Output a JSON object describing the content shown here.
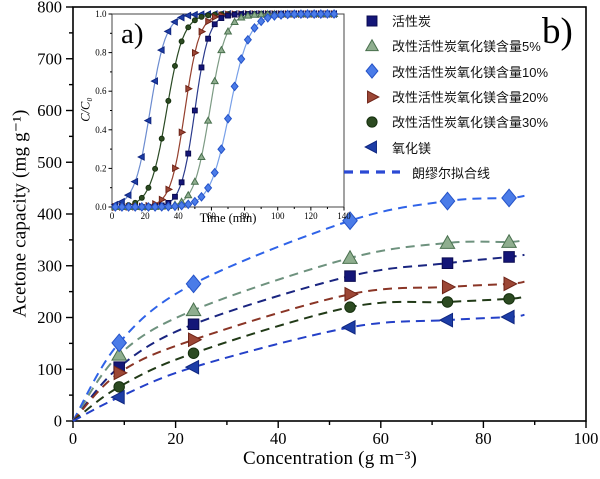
{
  "figure": {
    "panel_a": "a)",
    "panel_b": "b)"
  },
  "palette": {
    "square": {
      "fill": "#141678",
      "edge": "#0a0a50",
      "line": "#1a2580",
      "inset_line": "#2a3a8c"
    },
    "triangle-up": {
      "fill": "#8fae8f",
      "edge": "#49704e",
      "line": "#6e927e",
      "inset_line": "#7d9b84"
    },
    "diamond": {
      "fill": "#4b7ce8",
      "edge": "#2553c8",
      "line": "#2f63e8",
      "inset_line": "#78a0e8"
    },
    "triangle-right": {
      "fill": "#9c4736",
      "edge": "#6f2418",
      "line": "#8a3526",
      "inset_line": "#95402e"
    },
    "circle": {
      "fill": "#2c4a21",
      "edge": "#15300e",
      "line": "#213a17",
      "inset_line": "#2a4a24"
    },
    "triangle-left": {
      "fill": "#1d3da6",
      "edge": "#0f2680",
      "line": "#2440c8",
      "inset_line": "#6c8cd0"
    }
  },
  "fit_line_color": "#2b49d4",
  "legend": {
    "items": [
      {
        "label": "活性炭",
        "marker": "square"
      },
      {
        "label": "改性活性炭氧化镁含量5%",
        "marker": "triangle-up"
      },
      {
        "label": "改性活性炭氧化镁含量10%",
        "marker": "diamond"
      },
      {
        "label": "改性活性炭氧化镁含量20%",
        "marker": "triangle-right"
      },
      {
        "label": "改性活性炭氧化镁含量30%",
        "marker": "circle"
      },
      {
        "label": "氧化镁",
        "marker": "triangle-left"
      }
    ],
    "fit_label": "朗缪尔拟合线"
  },
  "chart_data": [
    {
      "id": "main",
      "type": "scatter",
      "xlabel": "Concentration (g m⁻³)",
      "ylabel": "Acetone capacity (mg g⁻¹)",
      "xlim": [
        0,
        100
      ],
      "ylim": [
        0,
        800
      ],
      "x_ticks": [
        "0",
        "20",
        "40",
        "60",
        "80",
        "100"
      ],
      "y_ticks": [
        "0",
        "100",
        "200",
        "300",
        "400",
        "500",
        "600",
        "700",
        "800"
      ],
      "x_minor_step": 10,
      "y_minor_step": 50,
      "fit": "Langmuir, dashed lines through origin",
      "x": [
        9,
        23.5,
        54,
        73,
        85
      ],
      "series": [
        {
          "name": "活性炭",
          "marker": "square",
          "y": [
            104,
            187,
            280,
            305,
            317
          ]
        },
        {
          "name": "改性活性炭氧化镁含量5%",
          "marker": "triangle-up",
          "y": [
            128,
            214,
            315,
            344,
            346
          ]
        },
        {
          "name": "改性活性炭氧化镁含量10%",
          "marker": "diamond",
          "y": [
            151,
            265,
            387,
            425,
            431
          ]
        },
        {
          "name": "改性活性炭氧化镁含量20%",
          "marker": "triangle-right",
          "y": [
            93,
            157,
            245,
            259,
            265
          ]
        },
        {
          "name": "改性活性炭氧化镁含量30%",
          "marker": "circle",
          "y": [
            66,
            131,
            220,
            230,
            236
          ]
        },
        {
          "name": "氧化镁",
          "marker": "triangle-left",
          "y": [
            46,
            104,
            181,
            195,
            201
          ]
        }
      ]
    },
    {
      "id": "inset",
      "type": "line",
      "panel_label": "a)",
      "xlabel": "Time (min)",
      "ylabel": "C/C₀",
      "xlim": [
        0,
        140
      ],
      "ylim": [
        0.0,
        1.0
      ],
      "x_ticks": [
        "0",
        "20",
        "40",
        "60",
        "80",
        "100",
        "120",
        "140"
      ],
      "y_ticks": [
        "0.0",
        "0.2",
        "0.4",
        "0.6",
        "0.8",
        "1.0"
      ],
      "x_minor_step": 10,
      "y_minor_step": 0.1,
      "model": "C/C0 = 1/(1+exp(-k*(t-t0))), markers every 4 min, t = 2…134",
      "marker_interval_min": 4,
      "t_start": 2,
      "t_end": 134,
      "series": [
        {
          "name": "氧化镁",
          "marker": "triangle-left",
          "t0": 23,
          "k": 0.21
        },
        {
          "name": "改性活性炭氧化镁含量30%",
          "marker": "circle",
          "t0": 33,
          "k": 0.2
        },
        {
          "name": "改性活性炭氧化镁含量20%",
          "marker": "triangle-right",
          "t0": 44,
          "k": 0.23
        },
        {
          "name": "活性炭",
          "marker": "square",
          "t0": 50,
          "k": 0.24
        },
        {
          "name": "改性活性炭氧化镁含量5%",
          "marker": "triangle-up",
          "t0": 59,
          "k": 0.21
        },
        {
          "name": "改性活性炭氧化镁含量10%",
          "marker": "diamond",
          "t0": 71,
          "k": 0.17
        }
      ]
    }
  ]
}
